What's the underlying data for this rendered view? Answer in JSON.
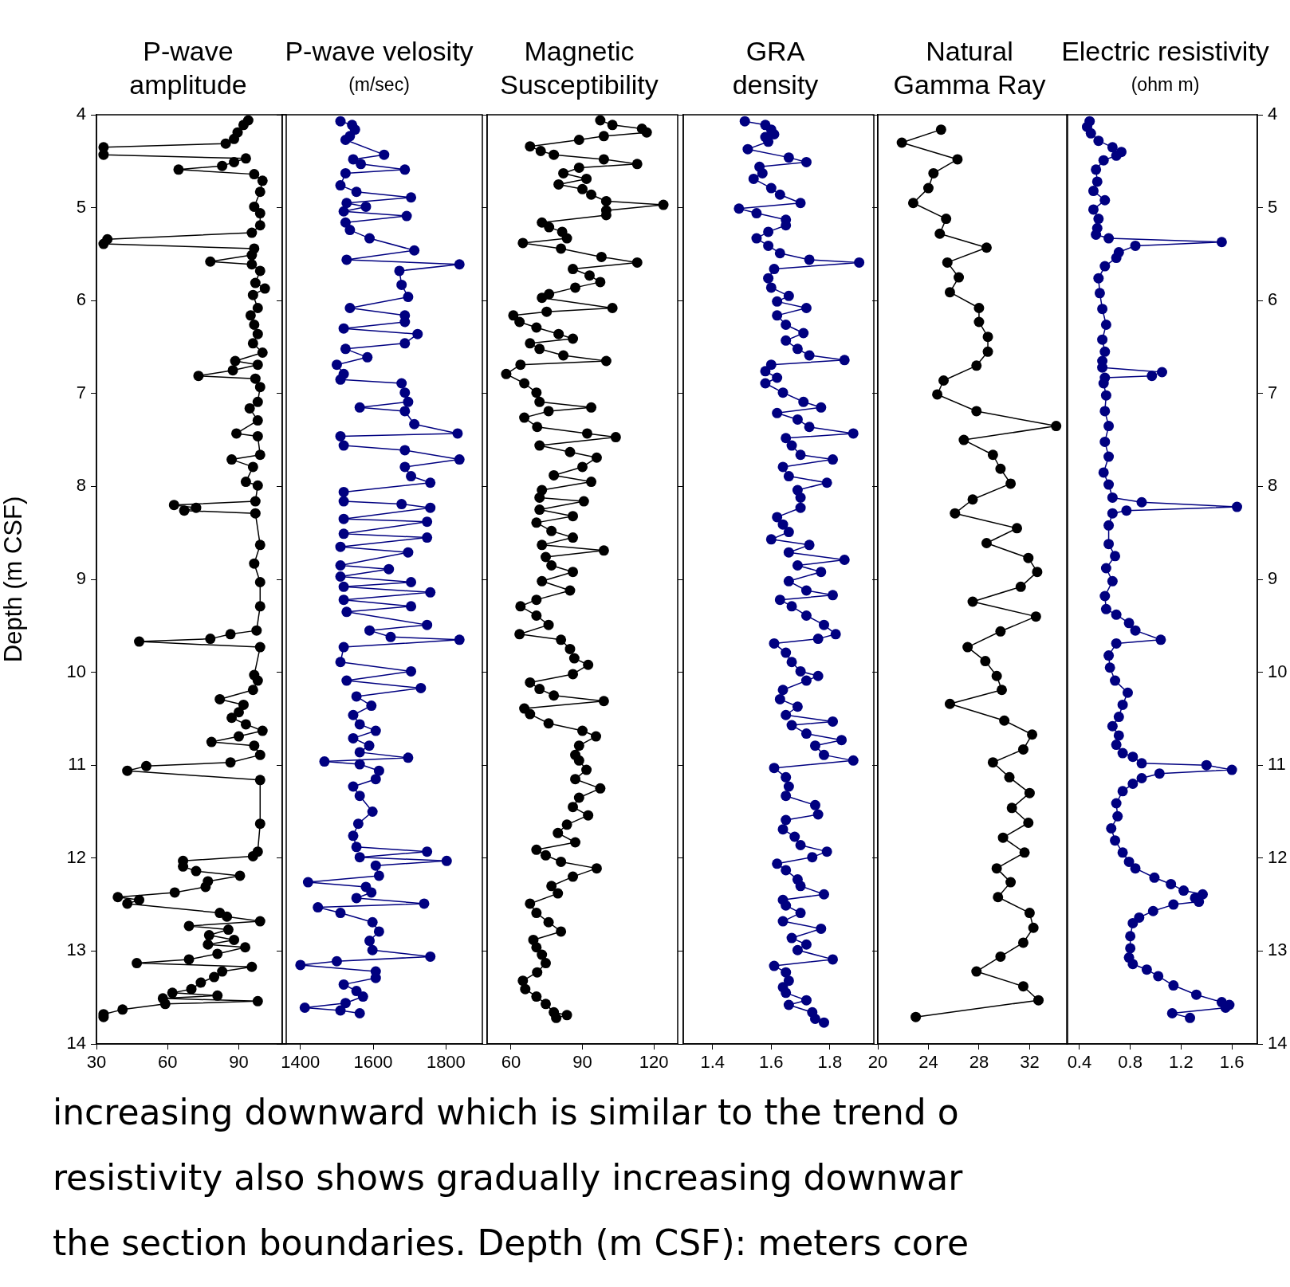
{
  "chart_data": [
    {
      "type": "line",
      "title": "P-wave\namplitude",
      "ylabel": "Depth (m CSF)",
      "color": "#000000",
      "marker": "circle",
      "xlim": [
        30,
        110
      ],
      "xticks": [
        30,
        60,
        90
      ],
      "ylim": [
        14,
        4
      ],
      "yticks": [
        4,
        5,
        6,
        7,
        8,
        9,
        10,
        11,
        12,
        13,
        14
      ],
      "x": [
        94,
        92,
        89.5,
        88,
        84.5,
        33,
        33,
        93,
        88,
        83,
        64.6,
        96.5,
        100,
        99,
        96.5,
        99,
        99,
        95.5,
        34.6,
        33,
        96.5,
        95.5,
        78,
        95.5,
        99,
        97,
        101,
        96,
        98,
        95,
        96.5,
        98,
        96,
        100,
        88.5,
        98,
        87.5,
        73,
        97,
        99,
        98,
        94.6,
        98,
        89,
        98,
        99,
        87,
        96,
        93,
        98,
        97,
        62.7,
        72,
        67,
        97,
        99,
        96.5,
        99,
        99,
        97.5,
        86.5,
        78,
        48,
        99,
        96.5,
        98,
        96,
        82,
        92,
        90,
        87,
        93,
        100,
        90,
        78.5,
        96.5,
        99,
        86.5,
        51,
        43,
        99,
        99,
        98,
        96,
        66.5,
        66.5,
        72,
        90.5,
        77,
        76,
        63,
        39,
        48,
        43,
        82,
        85,
        99,
        69,
        85.6,
        77.5,
        88,
        77,
        92.7,
        81,
        69,
        47,
        95.5,
        83,
        79.6,
        74,
        70,
        62,
        81,
        58,
        98,
        59,
        41,
        33,
        33
      ],
      "values": [
        4.06,
        4.11,
        4.19,
        4.26,
        4.31,
        4.35,
        4.43,
        4.47,
        4.51,
        4.55,
        4.59,
        4.64,
        4.71,
        4.83,
        4.99,
        5.06,
        5.19,
        5.27,
        5.34,
        5.39,
        5.44,
        5.51,
        5.58,
        5.61,
        5.68,
        5.81,
        5.87,
        5.94,
        6.08,
        6.16,
        6.26,
        6.36,
        6.46,
        6.56,
        6.65,
        6.69,
        6.75,
        6.81,
        6.84,
        6.93,
        7.09,
        7.16,
        7.29,
        7.43,
        7.46,
        7.66,
        7.71,
        7.79,
        7.95,
        7.99,
        8.16,
        8.2,
        8.23,
        8.26,
        8.29,
        8.63,
        8.83,
        9.03,
        9.29,
        9.55,
        9.59,
        9.64,
        9.67,
        9.73,
        10.03,
        10.09,
        10.19,
        10.29,
        10.35,
        10.43,
        10.49,
        10.56,
        10.63,
        10.69,
        10.75,
        10.79,
        10.89,
        10.97,
        11.01,
        11.06,
        11.16,
        11.63,
        11.93,
        11.98,
        12.03,
        12.09,
        12.14,
        12.19,
        12.25,
        12.31,
        12.37,
        12.42,
        12.45,
        12.49,
        12.59,
        12.63,
        12.68,
        12.73,
        12.77,
        12.83,
        12.88,
        12.93,
        12.96,
        13.03,
        13.09,
        13.13,
        13.17,
        13.22,
        13.28,
        13.34,
        13.41,
        13.45,
        13.48,
        13.51,
        13.54,
        13.57,
        13.63,
        13.68,
        13.71
      ],
      "annotations": [
        "increasing downward which is similar to the trend o",
        "resistivity also shows gradually increasing downwar",
        "the section boundaries. Depth (m CSF): meters core"
      ]
    },
    {
      "type": "line",
      "title": "P-wave velosity",
      "subtitle": "(m/sec)",
      "color": "#000080",
      "marker": "circle",
      "xlim": [
        1350,
        1900
      ],
      "xticks": [
        1400,
        1600,
        1800
      ],
      "ylim": [
        14,
        4
      ],
      "yticks": [
        4,
        5,
        6,
        7,
        8,
        9,
        10,
        11,
        12,
        13,
        14
      ],
      "tick_labels": "x",
      "x": [
        1510,
        1542,
        1550,
        1536,
        1524,
        1630,
        1545,
        1566,
        1687,
        1524,
        1510,
        1554,
        1704,
        1527,
        1580,
        1519,
        1692,
        1524,
        1536,
        1590,
        1713,
        1527,
        1837,
        1672,
        1678,
        1696,
        1536,
        1687,
        1687,
        1519,
        1722,
        1687,
        1524,
        1584,
        1500,
        1519,
        1510,
        1678,
        1687,
        1696,
        1563,
        1687,
        1713,
        1832,
        1510,
        1519,
        1687,
        1837,
        1687,
        1704,
        1757,
        1519,
        1519,
        1678,
        1757,
        1519,
        1748,
        1519,
        1748,
        1510,
        1696,
        1510,
        1643,
        1510,
        1704,
        1519,
        1757,
        1519,
        1704,
        1527,
        1748,
        1590,
        1648,
        1837,
        1519,
        1510,
        1704,
        1527,
        1731,
        1554,
        1595,
        1545,
        1563,
        1607,
        1545,
        1589,
        1563,
        1696,
        1466,
        1563,
        1616,
        1607,
        1545,
        1563,
        1598,
        1559,
        1545,
        1554,
        1748,
        1563,
        1802,
        1607,
        1616,
        1421,
        1580,
        1595,
        1554,
        1740,
        1448,
        1510,
        1598,
        1616,
        1590,
        1598,
        1757,
        1500,
        1400,
        1607,
        1607,
        1519,
        1554,
        1572,
        1524,
        1412,
        1510,
        1563
      ],
      "values": [
        4.07,
        4.11,
        4.16,
        4.23,
        4.27,
        4.43,
        4.48,
        4.53,
        4.59,
        4.63,
        4.76,
        4.83,
        4.89,
        4.95,
        4.99,
        5.04,
        5.09,
        5.16,
        5.24,
        5.33,
        5.46,
        5.56,
        5.61,
        5.68,
        5.83,
        5.96,
        6.08,
        6.16,
        6.23,
        6.3,
        6.36,
        6.46,
        6.52,
        6.61,
        6.69,
        6.79,
        6.85,
        6.89,
        6.99,
        7.09,
        7.15,
        7.19,
        7.33,
        7.43,
        7.46,
        7.56,
        7.61,
        7.71,
        7.79,
        7.89,
        7.96,
        8.06,
        8.16,
        8.19,
        8.23,
        8.35,
        8.38,
        8.51,
        8.55,
        8.65,
        8.71,
        8.85,
        8.89,
        8.97,
        9.03,
        9.08,
        9.14,
        9.22,
        9.29,
        9.35,
        9.49,
        9.55,
        9.62,
        9.65,
        9.73,
        9.89,
        9.99,
        10.09,
        10.17,
        10.26,
        10.36,
        10.46,
        10.56,
        10.63,
        10.71,
        10.79,
        10.86,
        10.92,
        10.96,
        10.99,
        11.06,
        11.15,
        11.23,
        11.33,
        11.5,
        11.63,
        11.76,
        11.88,
        11.93,
        11.99,
        12.03,
        12.08,
        12.19,
        12.26,
        12.31,
        12.37,
        12.43,
        12.49,
        12.53,
        12.59,
        12.69,
        12.79,
        12.89,
        12.99,
        13.06,
        13.11,
        13.15,
        13.22,
        13.29,
        13.36,
        13.43,
        13.49,
        13.56,
        13.61,
        13.64,
        13.67
      ]
    },
    {
      "type": "line",
      "title": "Magnetic\nSusceptibility",
      "color": "#000000",
      "marker": "circle",
      "xlim": [
        50,
        130
      ],
      "xticks": [
        60,
        90,
        120
      ],
      "ylim": [
        14,
        4
      ],
      "yticks": [
        4,
        5,
        6,
        7,
        8,
        9,
        10,
        11,
        12,
        13,
        14
      ],
      "tick_labels": "x",
      "x": [
        97.5,
        102.6,
        115,
        117,
        99,
        88.6,
        68,
        72.5,
        78,
        99,
        113,
        88.6,
        82,
        91.7,
        80,
        90,
        93.7,
        100,
        124,
        100,
        100,
        73,
        76,
        81.5,
        83.5,
        65,
        81,
        98,
        113,
        86,
        93,
        97.5,
        87,
        76,
        73,
        102.6,
        75,
        61,
        63.6,
        70.7,
        80,
        86,
        68,
        72,
        82,
        100,
        64,
        58,
        65.6,
        70.7,
        72,
        93.7,
        75.8,
        65.6,
        71,
        92,
        104,
        72,
        84.8,
        96,
        90,
        78,
        93.7,
        73,
        72,
        90.6,
        72,
        86,
        70.7,
        77,
        86,
        73,
        99,
        74.6,
        77,
        86,
        73,
        84.8,
        70.7,
        64,
        70.7,
        75.8,
        63.6,
        81,
        84.8,
        86.6,
        92.4,
        86,
        68,
        72,
        78,
        99,
        65.6,
        68,
        75.8,
        90,
        95.7,
        88.6,
        87,
        88.6,
        91.7,
        87,
        97.5,
        88.6,
        86,
        92.4,
        83.5,
        79.7,
        87,
        70.7,
        74.6,
        81,
        96,
        86,
        77,
        79.7,
        68,
        70.7,
        75.8,
        81,
        69.4,
        70.7,
        73,
        74.6,
        71,
        65,
        66,
        70.7,
        74.6,
        78,
        83.5,
        79
      ],
      "values": [
        4.06,
        4.11,
        4.15,
        4.19,
        4.23,
        4.27,
        4.34,
        4.39,
        4.43,
        4.48,
        4.53,
        4.57,
        4.63,
        4.69,
        4.75,
        4.8,
        4.86,
        4.93,
        4.97,
        5.03,
        5.08,
        5.16,
        5.21,
        5.26,
        5.33,
        5.38,
        5.44,
        5.53,
        5.59,
        5.66,
        5.73,
        5.8,
        5.86,
        5.93,
        5.97,
        6.08,
        6.12,
        6.16,
        6.23,
        6.29,
        6.36,
        6.41,
        6.46,
        6.52,
        6.59,
        6.65,
        6.69,
        6.79,
        6.89,
        6.99,
        7.09,
        7.15,
        7.19,
        7.26,
        7.36,
        7.43,
        7.47,
        7.56,
        7.63,
        7.69,
        7.79,
        7.88,
        7.95,
        8.04,
        8.12,
        8.16,
        8.25,
        8.32,
        8.39,
        8.48,
        8.55,
        8.63,
        8.69,
        8.76,
        8.85,
        8.92,
        9.02,
        9.12,
        9.22,
        9.29,
        9.39,
        9.49,
        9.59,
        9.65,
        9.75,
        9.85,
        9.92,
        10.02,
        10.11,
        10.18,
        10.25,
        10.31,
        10.39,
        10.45,
        10.55,
        10.63,
        10.69,
        10.79,
        10.89,
        10.95,
        11.05,
        11.15,
        11.25,
        11.35,
        11.45,
        11.54,
        11.64,
        11.73,
        11.83,
        11.91,
        11.97,
        12.04,
        12.11,
        12.2,
        12.3,
        12.38,
        12.49,
        12.59,
        12.69,
        12.79,
        12.88,
        12.96,
        13.04,
        13.13,
        13.23,
        13.32,
        13.41,
        13.49,
        13.57,
        13.66,
        13.69,
        13.72
      ]
    },
    {
      "type": "line",
      "title": "GRA\ndensity",
      "color": "#000080",
      "marker": "circle",
      "xlim": [
        1.3,
        1.95
      ],
      "xticks": [
        1.4,
        1.6,
        1.8
      ],
      "ylim": [
        14,
        4
      ],
      "yticks": [
        4,
        5,
        6,
        7,
        8,
        9,
        10,
        11,
        12,
        13,
        14
      ],
      "tick_labels": "x",
      "x": [
        1.51,
        1.58,
        1.6,
        1.61,
        1.58,
        1.59,
        1.52,
        1.66,
        1.72,
        1.56,
        1.57,
        1.54,
        1.6,
        1.63,
        1.7,
        1.49,
        1.55,
        1.65,
        1.65,
        1.59,
        1.55,
        1.59,
        1.63,
        1.73,
        1.9,
        1.61,
        1.59,
        1.6,
        1.66,
        1.62,
        1.72,
        1.62,
        1.65,
        1.71,
        1.65,
        1.69,
        1.73,
        1.85,
        1.6,
        1.58,
        1.62,
        1.58,
        1.64,
        1.71,
        1.77,
        1.62,
        1.69,
        1.73,
        1.88,
        1.65,
        1.67,
        1.7,
        1.81,
        1.64,
        1.66,
        1.79,
        1.69,
        1.7,
        1.7,
        1.62,
        1.64,
        1.66,
        1.6,
        1.73,
        1.66,
        1.85,
        1.69,
        1.77,
        1.66,
        1.72,
        1.81,
        1.63,
        1.67,
        1.72,
        1.78,
        1.82,
        1.76,
        1.61,
        1.65,
        1.67,
        1.7,
        1.76,
        1.72,
        1.64,
        1.63,
        1.69,
        1.65,
        1.81,
        1.67,
        1.72,
        1.84,
        1.75,
        1.78,
        1.88,
        1.61,
        1.65,
        1.66,
        1.65,
        1.75,
        1.76,
        1.65,
        1.64,
        1.68,
        1.7,
        1.79,
        1.74,
        1.62,
        1.65,
        1.69,
        1.7,
        1.78,
        1.64,
        1.65,
        1.7,
        1.64,
        1.77,
        1.67,
        1.72,
        1.69,
        1.81,
        1.61,
        1.65,
        1.66,
        1.64,
        1.65,
        1.72,
        1.66,
        1.74,
        1.75,
        1.78
      ],
      "values": [
        4.07,
        4.11,
        4.16,
        4.21,
        4.24,
        4.29,
        4.37,
        4.46,
        4.51,
        4.56,
        4.63,
        4.69,
        4.79,
        4.86,
        4.95,
        5.01,
        5.06,
        5.13,
        5.19,
        5.26,
        5.33,
        5.41,
        5.49,
        5.56,
        5.59,
        5.66,
        5.76,
        5.86,
        5.95,
        6.01,
        6.08,
        6.16,
        6.26,
        6.35,
        6.43,
        6.52,
        6.59,
        6.64,
        6.69,
        6.76,
        6.83,
        6.89,
        6.99,
        7.09,
        7.15,
        7.21,
        7.28,
        7.36,
        7.43,
        7.48,
        7.56,
        7.66,
        7.71,
        7.79,
        7.89,
        7.96,
        8.04,
        8.12,
        8.23,
        8.33,
        8.41,
        8.49,
        8.57,
        8.63,
        8.71,
        8.79,
        8.85,
        8.92,
        9.02,
        9.12,
        9.17,
        9.22,
        9.29,
        9.39,
        9.49,
        9.59,
        9.64,
        9.69,
        9.79,
        9.89,
        9.99,
        10.04,
        10.09,
        10.19,
        10.29,
        10.37,
        10.46,
        10.53,
        10.57,
        10.66,
        10.73,
        10.79,
        10.89,
        10.95,
        11.03,
        11.13,
        11.23,
        11.33,
        11.43,
        11.53,
        11.59,
        11.69,
        11.77,
        11.86,
        11.93,
        11.99,
        12.06,
        12.13,
        12.23,
        12.3,
        12.39,
        12.45,
        12.51,
        12.59,
        12.68,
        12.76,
        12.86,
        12.93,
        12.99,
        13.09,
        13.16,
        13.23,
        13.32,
        13.39,
        13.45,
        13.53,
        13.58,
        13.66,
        13.73,
        13.77
      ]
    },
    {
      "type": "line",
      "title": "Natural\nGamma Ray",
      "color": "#000000",
      "marker": "circle",
      "xlim": [
        20,
        35
      ],
      "xticks": [
        20,
        24,
        28,
        32
      ],
      "ylim": [
        14,
        4
      ],
      "yticks": [
        4,
        5,
        6,
        7,
        8,
        9,
        10,
        11,
        12,
        13,
        14
      ],
      "tick_labels": "x",
      "x": [
        25,
        21.9,
        26.3,
        24.4,
        24,
        22.8,
        25.4,
        24.9,
        28.6,
        25.5,
        26.4,
        25.7,
        28,
        28,
        28.7,
        28.7,
        27.8,
        25.2,
        24.7,
        27.8,
        34.1,
        26.8,
        29.1,
        29.7,
        30.5,
        27.5,
        26.1,
        31,
        28.6,
        31.9,
        32.6,
        31.3,
        27.5,
        32.5,
        29.7,
        27.1,
        28.5,
        29.4,
        29.8,
        25.7,
        30,
        32.2,
        31.5,
        29.1,
        30.4,
        32,
        30.6,
        31.9,
        29.9,
        31.6,
        29.4,
        30.5,
        29.5,
        32,
        32.3,
        31.5,
        29.7,
        27.8,
        31.5,
        32.7,
        23
      ],
      "values": [
        4.16,
        4.3,
        4.48,
        4.63,
        4.79,
        4.95,
        5.12,
        5.28,
        5.43,
        5.59,
        5.75,
        5.91,
        6.08,
        6.23,
        6.39,
        6.55,
        6.7,
        6.86,
        7.01,
        7.19,
        7.35,
        7.5,
        7.66,
        7.81,
        7.97,
        8.14,
        8.29,
        8.45,
        8.61,
        8.77,
        8.92,
        9.08,
        9.24,
        9.4,
        9.56,
        9.73,
        9.88,
        10.04,
        10.19,
        10.34,
        10.52,
        10.67,
        10.83,
        10.97,
        11.13,
        11.3,
        11.46,
        11.62,
        11.78,
        11.94,
        12.11,
        12.26,
        12.42,
        12.59,
        12.75,
        12.91,
        13.06,
        13.22,
        13.38,
        13.53,
        13.71
      ]
    },
    {
      "type": "line",
      "title": "Electric resistivity",
      "subtitle": "(ohm m)",
      "color": "#000080",
      "marker": "circle",
      "xlim": [
        0.3,
        1.8
      ],
      "xticks": [
        0.4,
        0.8,
        1.2,
        1.6
      ],
      "ylim": [
        14,
        4
      ],
      "yticks": [
        4,
        5,
        6,
        7,
        8,
        9,
        10,
        11,
        12,
        13,
        14
      ],
      "x": [
        0.48,
        0.46,
        0.49,
        0.55,
        0.66,
        0.73,
        0.69,
        0.59,
        0.53,
        0.54,
        0.51,
        0.6,
        0.51,
        0.55,
        0.54,
        0.53,
        0.63,
        1.52,
        0.84,
        0.71,
        0.69,
        0.6,
        0.55,
        0.56,
        0.58,
        0.61,
        0.58,
        0.6,
        0.58,
        0.58,
        1.05,
        0.97,
        0.6,
        0.59,
        0.61,
        0.6,
        0.63,
        0.6,
        0.63,
        0.59,
        0.63,
        0.66,
        0.89,
        1.64,
        0.77,
        0.66,
        0.63,
        0.63,
        0.68,
        0.61,
        0.66,
        0.6,
        0.61,
        0.69,
        0.79,
        0.84,
        1.04,
        0.69,
        0.63,
        0.64,
        0.68,
        0.78,
        0.74,
        0.71,
        0.66,
        0.71,
        0.69,
        0.74,
        0.82,
        0.89,
        1.4,
        1.6,
        1.03,
        0.89,
        0.82,
        0.74,
        0.69,
        0.7,
        0.65,
        0.68,
        0.74,
        0.79,
        0.84,
        0.99,
        1.12,
        1.22,
        1.37,
        1.31,
        1.34,
        1.14,
        0.98,
        0.87,
        0.82,
        0.8,
        0.8,
        0.79,
        0.82,
        0.93,
        1.02,
        1.14,
        1.32,
        1.52,
        1.58,
        1.55,
        1.13,
        1.27
      ],
      "values": [
        4.07,
        4.13,
        4.2,
        4.28,
        4.35,
        4.4,
        4.44,
        4.49,
        4.59,
        4.72,
        4.82,
        4.92,
        5.02,
        5.12,
        5.22,
        5.29,
        5.33,
        5.37,
        5.41,
        5.48,
        5.54,
        5.63,
        5.76,
        5.92,
        6.09,
        6.26,
        6.42,
        6.55,
        6.65,
        6.72,
        6.77,
        6.81,
        6.83,
        6.89,
        7.02,
        7.19,
        7.35,
        7.52,
        7.68,
        7.85,
        7.98,
        8.12,
        8.17,
        8.22,
        8.26,
        8.29,
        8.42,
        8.62,
        8.75,
        8.88,
        9.02,
        9.18,
        9.32,
        9.38,
        9.47,
        9.55,
        9.65,
        9.69,
        9.82,
        9.95,
        10.09,
        10.22,
        10.35,
        10.48,
        10.58,
        10.68,
        10.78,
        10.87,
        10.91,
        10.98,
        11,
        11.05,
        11.09,
        11.14,
        11.2,
        11.28,
        11.41,
        11.55,
        11.68,
        11.81,
        11.94,
        12.04,
        12.11,
        12.21,
        12.28,
        12.35,
        12.39,
        12.43,
        12.47,
        12.5,
        12.57,
        12.64,
        12.7,
        12.84,
        12.97,
        13.07,
        13.14,
        13.2,
        13.27,
        13.37,
        13.47,
        13.55,
        13.58,
        13.61,
        13.67,
        13.72
      ]
    }
  ]
}
